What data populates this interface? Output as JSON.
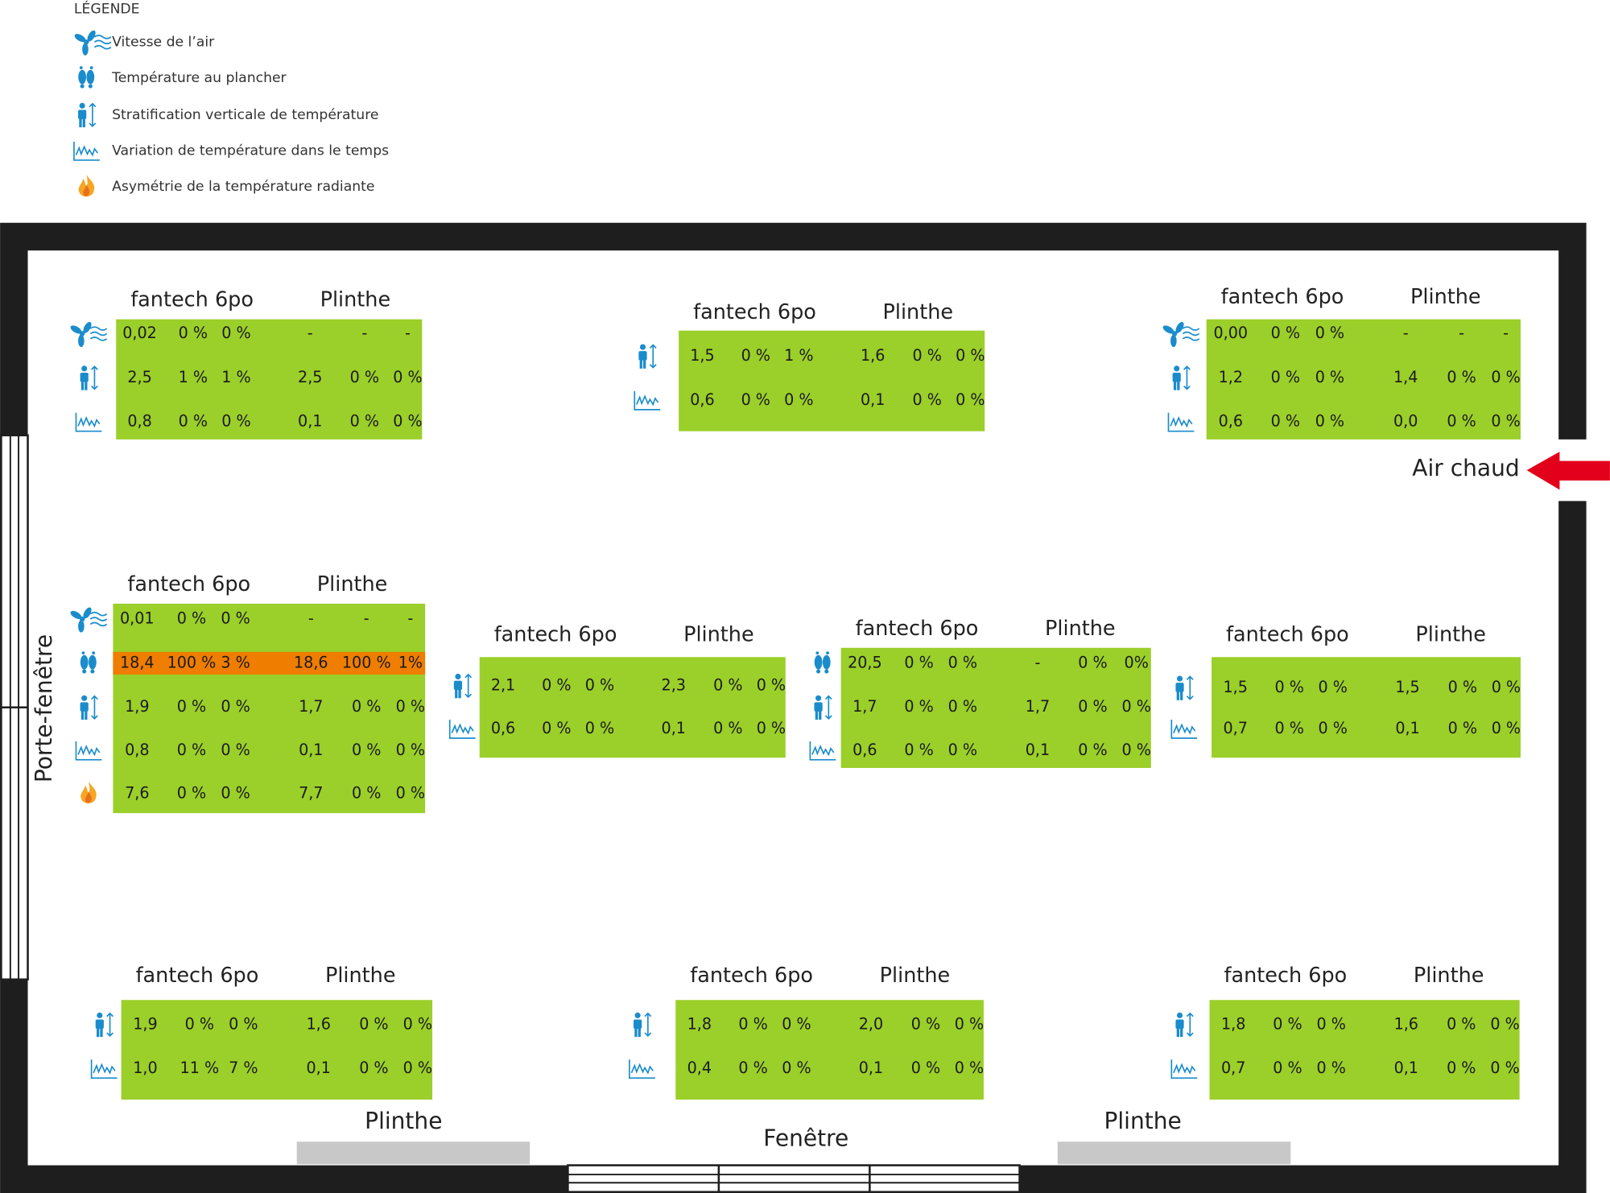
{
  "legend": {
    "title": "LÉGENDE",
    "items": [
      "Vitesse de l’air",
      "Température au plancher",
      "Stratification verticale de température",
      "Variation de température dans le temps",
      "Asymétrie de la température radiante"
    ]
  },
  "panels": [
    {
      "headers": [
        "fantech 6po",
        "Plinthe"
      ],
      "rows": [
        [
          "0,02",
          "0 %",
          "0 %",
          "-",
          "-",
          "-"
        ],
        [
          "2,5",
          "1 %",
          "1 %",
          "2,5",
          "0 %",
          "0 %"
        ],
        [
          "0,8",
          "0 %",
          "0 %",
          "0,1",
          "0 %",
          "0 %"
        ]
      ]
    },
    {
      "headers": [
        "fantech 6po",
        "Plinthe"
      ],
      "rows": [
        [
          "1,5",
          "0 %",
          "1 %",
          "1,6",
          "0 %",
          "0 %"
        ],
        [
          "0,6",
          "0 %",
          "0 %",
          "0,1",
          "0 %",
          "0 %"
        ]
      ]
    },
    {
      "headers": [
        "fantech 6po",
        "Plinthe"
      ],
      "rows": [
        [
          "0,00",
          "0 %",
          "0 %",
          "-",
          "-",
          "-"
        ],
        [
          "1,2",
          "0 %",
          "0 %",
          "1,4",
          "0 %",
          "0 %"
        ],
        [
          "0,6",
          "0 %",
          "0 %",
          "0,0",
          "0 %",
          "0 %"
        ]
      ]
    },
    {
      "headers": [
        "fantech 6po",
        "Plinthe"
      ],
      "rows": [
        [
          "0,01",
          "0 %",
          "0 %",
          "-",
          "-",
          "-"
        ],
        [
          "18,4",
          "100 %",
          "3 %",
          "18,6",
          "100 %",
          "1%"
        ],
        [
          "1,9",
          "0 %",
          "0 %",
          "1,7",
          "0 %",
          "0 %"
        ],
        [
          "0,8",
          "0 %",
          "0 %",
          "0,1",
          "0 %",
          "0 %"
        ],
        [
          "7,6",
          "0 %",
          "0 %",
          "7,7",
          "0 %",
          "0 %"
        ]
      ]
    },
    {
      "headers": [
        "fantech 6po",
        "Plinthe"
      ],
      "rows": [
        [
          "2,1",
          "0 %",
          "0 %",
          "2,3",
          "0 %",
          "0 %"
        ],
        [
          "0,6",
          "0 %",
          "0 %",
          "0,1",
          "0 %",
          "0 %"
        ]
      ]
    },
    {
      "headers": [
        "fantech 6po",
        "Plinthe"
      ],
      "rows": [
        [
          "20,5",
          "0 %",
          "0 %",
          "-",
          "0 %",
          "0%"
        ],
        [
          "1,7",
          "0 %",
          "0 %",
          "1,7",
          "0 %",
          "0 %"
        ],
        [
          "0,6",
          "0 %",
          "0 %",
          "0,1",
          "0 %",
          "0 %"
        ]
      ]
    },
    {
      "headers": [
        "fantech 6po",
        "Plinthe"
      ],
      "rows": [
        [
          "1,5",
          "0 %",
          "0 %",
          "1,5",
          "0 %",
          "0 %"
        ],
        [
          "0,7",
          "0 %",
          "0 %",
          "0,1",
          "0 %",
          "0 %"
        ]
      ]
    },
    {
      "headers": [
        "fantech 6po",
        "Plinthe"
      ],
      "rows": [
        [
          "1,9",
          "0 %",
          "0 %",
          "1,6",
          "0 %",
          "0 %"
        ],
        [
          "1,0",
          "11 %",
          "7 %",
          "0,1",
          "0 %",
          "0 %"
        ]
      ]
    },
    {
      "headers": [
        "fantech 6po",
        "Plinthe"
      ],
      "rows": [
        [
          "1,8",
          "0 %",
          "0 %",
          "2,0",
          "0 %",
          "0 %"
        ],
        [
          "0,4",
          "0 %",
          "0 %",
          "0,1",
          "0 %",
          "0 %"
        ]
      ]
    },
    {
      "headers": [
        "fantech 6po",
        "Plinthe"
      ],
      "rows": [
        [
          "1,8",
          "0 %",
          "0 %",
          "1,6",
          "0 %",
          "0 %"
        ],
        [
          "0,7",
          "0 %",
          "0 %",
          "0,1",
          "0 %",
          "0 %"
        ]
      ]
    }
  ],
  "labels": {
    "air": "Air chaud",
    "door": "Porte-fenêtre",
    "plinthe_left": "Plinthe",
    "window": "Fenêtre",
    "plinthe_right": "Plinthe"
  }
}
